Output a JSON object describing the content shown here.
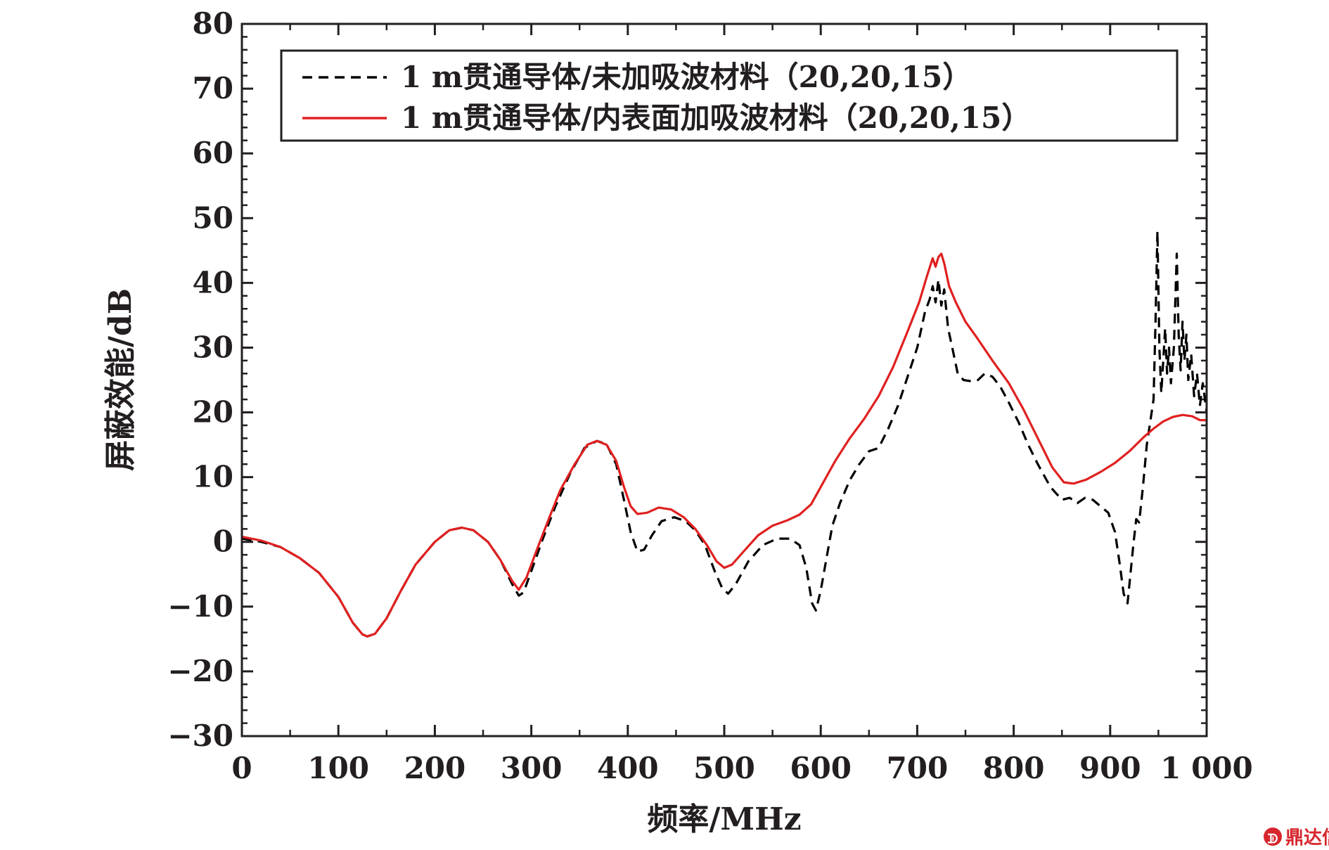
{
  "chart_data": {
    "type": "line",
    "xlabel": "频率/MHz",
    "ylabel": "屏蔽效能/dB",
    "xlim": [
      0,
      1000
    ],
    "ylim": [
      -30,
      80
    ],
    "xticks": [
      0,
      100,
      200,
      300,
      400,
      500,
      600,
      700,
      800,
      900,
      1000
    ],
    "xtick_labels": [
      "0",
      "100",
      "200",
      "300",
      "400",
      "500",
      "600",
      "700",
      "800",
      "900",
      "1 000"
    ],
    "yticks": [
      -30,
      -20,
      -10,
      0,
      10,
      20,
      30,
      40,
      50,
      60,
      70,
      80
    ],
    "ytick_labels": [
      "−30",
      "−20",
      "−10",
      "0",
      "10",
      "20",
      "30",
      "40",
      "50",
      "60",
      "70",
      "80"
    ],
    "grid": false,
    "legend_position": "top",
    "series": [
      {
        "name": "1 m贯通导体/未加吸波材料（20,20,15）",
        "color": "#000000",
        "style": "dashed",
        "points": [
          [
            0,
            0.5
          ],
          [
            20,
            0
          ],
          [
            40,
            -0.8
          ],
          [
            60,
            -2.5
          ],
          [
            80,
            -4.8
          ],
          [
            100,
            -8.5
          ],
          [
            115,
            -12.5
          ],
          [
            125,
            -14.3
          ],
          [
            130,
            -14.6
          ],
          [
            138,
            -14.2
          ],
          [
            150,
            -11.8
          ],
          [
            165,
            -7.5
          ],
          [
            180,
            -3.5
          ],
          [
            200,
            0
          ],
          [
            215,
            1.8
          ],
          [
            228,
            2.2
          ],
          [
            240,
            1.8
          ],
          [
            255,
            0
          ],
          [
            268,
            -2.8
          ],
          [
            280,
            -6.5
          ],
          [
            287,
            -8.3
          ],
          [
            292,
            -7.8
          ],
          [
            300,
            -4.5
          ],
          [
            312,
            0.5
          ],
          [
            325,
            5.5
          ],
          [
            340,
            10.5
          ],
          [
            355,
            14.5
          ],
          [
            368,
            15.6
          ],
          [
            378,
            15.1
          ],
          [
            388,
            12.0
          ],
          [
            396,
            6.5
          ],
          [
            403,
            1.5
          ],
          [
            410,
            -1.5
          ],
          [
            417,
            -1.2
          ],
          [
            425,
            1.0
          ],
          [
            435,
            3.2
          ],
          [
            448,
            3.8
          ],
          [
            460,
            3.2
          ],
          [
            470,
            1.8
          ],
          [
            480,
            -0.5
          ],
          [
            490,
            -4.5
          ],
          [
            498,
            -7.2
          ],
          [
            504,
            -8.0
          ],
          [
            512,
            -6.5
          ],
          [
            525,
            -3.0
          ],
          [
            540,
            -0.5
          ],
          [
            555,
            0.5
          ],
          [
            568,
            0.5
          ],
          [
            578,
            -0.5
          ],
          [
            585,
            -4
          ],
          [
            591,
            -9.5
          ],
          [
            595,
            -10.6
          ],
          [
            600,
            -7.5
          ],
          [
            606,
            -2.5
          ],
          [
            612,
            2.5
          ],
          [
            620,
            6.0
          ],
          [
            630,
            9.5
          ],
          [
            640,
            12.0
          ],
          [
            650,
            14.0
          ],
          [
            660,
            14.5
          ],
          [
            670,
            17.5
          ],
          [
            680,
            21.0
          ],
          [
            690,
            25.5
          ],
          [
            700,
            30.0
          ],
          [
            708,
            35.5
          ],
          [
            713,
            37.5
          ],
          [
            716,
            39.5
          ],
          [
            719,
            37.0
          ],
          [
            722,
            40.5
          ],
          [
            725,
            36.5
          ],
          [
            728,
            39.0
          ],
          [
            732,
            33.0
          ],
          [
            737,
            29.5
          ],
          [
            742,
            26.0
          ],
          [
            748,
            25.0
          ],
          [
            756,
            24.8
          ],
          [
            763,
            25.0
          ],
          [
            770,
            26.0
          ],
          [
            778,
            25.5
          ],
          [
            786,
            24.0
          ],
          [
            795,
            21.5
          ],
          [
            805,
            18.5
          ],
          [
            815,
            15.0
          ],
          [
            825,
            12.0
          ],
          [
            838,
            8.5
          ],
          [
            850,
            6.5
          ],
          [
            858,
            6.8
          ],
          [
            866,
            6.0
          ],
          [
            874,
            6.8
          ],
          [
            882,
            6.5
          ],
          [
            890,
            5.5
          ],
          [
            898,
            4.5
          ],
          [
            905,
            1.5
          ],
          [
            910,
            -3.5
          ],
          [
            914,
            -8.0
          ],
          [
            918,
            -9.5
          ],
          [
            921,
            -5.0
          ],
          [
            924,
            -0.5
          ],
          [
            927,
            3.5
          ],
          [
            930,
            3.0
          ],
          [
            934,
            8.5
          ],
          [
            938,
            15.0
          ],
          [
            942,
            19.0
          ],
          [
            945,
            22.0
          ],
          [
            947,
            34.0
          ],
          [
            949,
            48.0
          ],
          [
            951,
            30.0
          ],
          [
            953,
            23.0
          ],
          [
            955,
            28.0
          ],
          [
            957,
            33.0
          ],
          [
            959,
            26.0
          ],
          [
            961,
            30.0
          ],
          [
            963,
            24.5
          ],
          [
            966,
            30.0
          ],
          [
            969,
            44.5
          ],
          [
            971,
            32.0
          ],
          [
            973,
            26.5
          ],
          [
            975,
            34.0
          ],
          [
            977,
            28.0
          ],
          [
            979,
            32.0
          ],
          [
            981,
            25.0
          ],
          [
            984,
            29.0
          ],
          [
            987,
            22.5
          ],
          [
            990,
            26.0
          ],
          [
            993,
            21.0
          ],
          [
            996,
            24.5
          ],
          [
            1000,
            20.0
          ]
        ]
      },
      {
        "name": "1 m贯通导体/内表面加吸波材料（20,20,15）",
        "color": "#e02020",
        "style": "solid",
        "points": [
          [
            0,
            0.8
          ],
          [
            20,
            0.2
          ],
          [
            40,
            -0.8
          ],
          [
            60,
            -2.5
          ],
          [
            80,
            -4.8
          ],
          [
            100,
            -8.5
          ],
          [
            115,
            -12.5
          ],
          [
            125,
            -14.3
          ],
          [
            130,
            -14.6
          ],
          [
            138,
            -14.2
          ],
          [
            150,
            -11.8
          ],
          [
            165,
            -7.5
          ],
          [
            180,
            -3.5
          ],
          [
            200,
            0
          ],
          [
            215,
            1.8
          ],
          [
            228,
            2.2
          ],
          [
            240,
            1.8
          ],
          [
            255,
            0
          ],
          [
            268,
            -2.8
          ],
          [
            280,
            -6.0
          ],
          [
            287,
            -7.4
          ],
          [
            295,
            -5.5
          ],
          [
            305,
            -1.5
          ],
          [
            318,
            3.5
          ],
          [
            330,
            8.0
          ],
          [
            345,
            12.0
          ],
          [
            358,
            15.0
          ],
          [
            368,
            15.6
          ],
          [
            378,
            15.0
          ],
          [
            388,
            12.5
          ],
          [
            396,
            8.5
          ],
          [
            403,
            5.5
          ],
          [
            410,
            4.3
          ],
          [
            420,
            4.5
          ],
          [
            432,
            5.3
          ],
          [
            445,
            5.0
          ],
          [
            458,
            3.8
          ],
          [
            470,
            2.0
          ],
          [
            482,
            -0.5
          ],
          [
            492,
            -3.0
          ],
          [
            500,
            -4.0
          ],
          [
            508,
            -3.5
          ],
          [
            520,
            -1.5
          ],
          [
            535,
            1.0
          ],
          [
            550,
            2.5
          ],
          [
            565,
            3.3
          ],
          [
            578,
            4.2
          ],
          [
            590,
            5.8
          ],
          [
            602,
            9.0
          ],
          [
            615,
            12.5
          ],
          [
            630,
            16.0
          ],
          [
            645,
            19.0
          ],
          [
            660,
            22.5
          ],
          [
            675,
            27.0
          ],
          [
            690,
            32.5
          ],
          [
            702,
            37.0
          ],
          [
            710,
            41.0
          ],
          [
            716,
            43.8
          ],
          [
            719,
            42.5
          ],
          [
            722,
            44.0
          ],
          [
            725,
            44.5
          ],
          [
            728,
            43.0
          ],
          [
            733,
            39.5
          ],
          [
            740,
            37.0
          ],
          [
            750,
            34.0
          ],
          [
            762,
            31.5
          ],
          [
            778,
            28.0
          ],
          [
            795,
            24.5
          ],
          [
            810,
            20.5
          ],
          [
            825,
            16.0
          ],
          [
            840,
            11.5
          ],
          [
            852,
            9.2
          ],
          [
            862,
            9.0
          ],
          [
            875,
            9.6
          ],
          [
            890,
            10.8
          ],
          [
            905,
            12.2
          ],
          [
            920,
            14.0
          ],
          [
            935,
            16.2
          ],
          [
            945,
            17.5
          ],
          [
            955,
            18.6
          ],
          [
            965,
            19.3
          ],
          [
            975,
            19.6
          ],
          [
            985,
            19.4
          ],
          [
            993,
            18.8
          ],
          [
            1000,
            18.8
          ]
        ]
      }
    ]
  },
  "watermark": {
    "badge": "ᗫ",
    "text": "鼎达信"
  }
}
